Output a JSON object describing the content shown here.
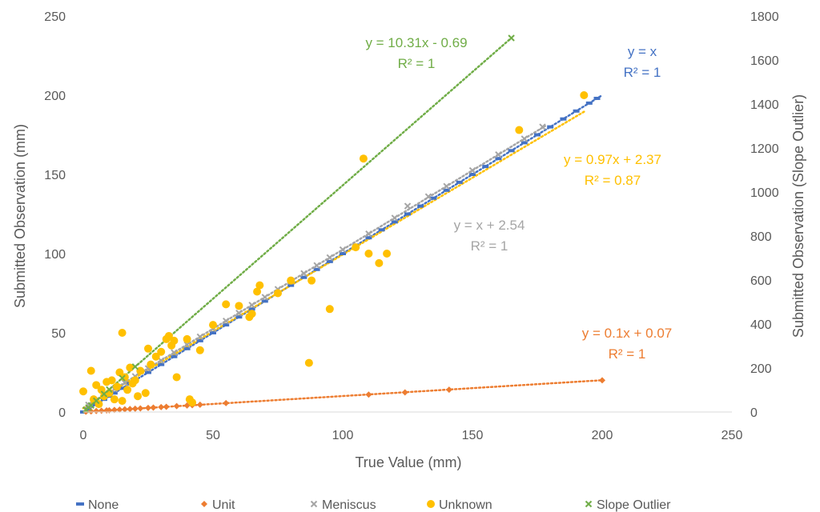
{
  "chart_data": {
    "type": "scatter",
    "xlabel": "True Value (mm)",
    "ylabel": "Submitted Observation (mm)",
    "y2label": "Submitted Observation (Slope Outlier)",
    "xlim": [
      0,
      250
    ],
    "ylim": [
      0,
      250
    ],
    "y2lim": [
      0,
      1800
    ],
    "xticks": [
      0,
      50,
      100,
      150,
      200,
      250
    ],
    "yticks": [
      0,
      50,
      100,
      150,
      200,
      250
    ],
    "y2ticks": [
      0,
      200,
      400,
      600,
      800,
      1000,
      1200,
      1400,
      1600,
      1800
    ],
    "grid": false,
    "legend_position": "bottom",
    "series": [
      {
        "name": "None",
        "marker": "dash",
        "color": "#4472C4",
        "axis": "left",
        "x": [
          0,
          2,
          5,
          8,
          10,
          12,
          15,
          18,
          20,
          25,
          30,
          35,
          40,
          45,
          50,
          55,
          60,
          65,
          70,
          75,
          80,
          85,
          90,
          95,
          100,
          105,
          110,
          115,
          120,
          125,
          130,
          135,
          140,
          145,
          150,
          155,
          160,
          165,
          170,
          175,
          180,
          185,
          190,
          195,
          198
        ],
        "y": [
          0,
          2,
          5,
          8,
          10,
          12,
          15,
          18,
          20,
          25,
          30,
          35,
          40,
          45,
          50,
          55,
          60,
          65,
          70,
          75,
          80,
          85,
          90,
          95,
          100,
          105,
          110,
          115,
          120,
          125,
          130,
          135,
          140,
          145,
          150,
          155,
          160,
          165,
          170,
          175,
          180,
          185,
          190,
          195,
          198
        ],
        "trendline": {
          "label": "y = x",
          "r2": "R² = 1",
          "color": "#4472C4",
          "x_range": [
            0,
            200
          ],
          "slope": 1,
          "intercept": 0
        }
      },
      {
        "name": "Unit",
        "marker": "diamond",
        "color": "#ED7D31",
        "axis": "left",
        "x": [
          1,
          3,
          5,
          7,
          9,
          10,
          12,
          14,
          16,
          18,
          20,
          22,
          25,
          27,
          30,
          32,
          36,
          40,
          42,
          45,
          55,
          110,
          124,
          141,
          200
        ],
        "y": [
          0.2,
          0.4,
          0.6,
          0.8,
          1.0,
          1.1,
          1.3,
          1.5,
          1.7,
          1.9,
          2.1,
          2.3,
          2.6,
          2.8,
          3.1,
          3.3,
          3.7,
          4.1,
          4.3,
          4.6,
          5.6,
          11,
          12.4,
          14.1,
          20
        ],
        "trendline": {
          "label": "y = 0.1x + 0.07",
          "r2": "R² = 1",
          "color": "#ED7D31",
          "x_range": [
            0,
            200
          ],
          "slope": 0.1,
          "intercept": 0.07
        }
      },
      {
        "name": "Meniscus",
        "marker": "x",
        "color": "#A5A5A5",
        "axis": "left",
        "x": [
          2,
          5,
          8,
          12,
          16,
          20,
          25,
          30,
          35,
          40,
          45,
          50,
          55,
          60,
          65,
          70,
          75,
          80,
          85,
          90,
          95,
          100,
          110,
          120,
          125,
          133,
          140,
          150,
          160,
          170,
          177
        ],
        "y": [
          4.5,
          7.5,
          10.5,
          14.5,
          18.5,
          22.5,
          27.5,
          32.5,
          37.5,
          42.5,
          47.5,
          52.5,
          57.5,
          62.5,
          67.5,
          72.5,
          77.5,
          82.5,
          87.5,
          92.5,
          97.5,
          102.5,
          112.5,
          122.5,
          130,
          136,
          142.5,
          152.5,
          162.5,
          172.5,
          180
        ],
        "trendline": {
          "label": "y = x + 2.54",
          "r2": "R² = 1",
          "color": "#A5A5A5",
          "x_range": [
            0,
            178
          ],
          "slope": 1,
          "intercept": 2.54
        }
      },
      {
        "name": "Unknown",
        "marker": "circle",
        "color": "#FFC000",
        "axis": "left",
        "x": [
          0,
          3,
          4,
          5,
          6,
          7,
          8,
          9,
          10,
          11,
          12,
          13,
          14,
          15,
          15,
          16,
          17,
          18,
          19,
          20,
          21,
          22,
          24,
          25,
          26,
          28,
          30,
          32,
          33,
          34,
          35,
          36,
          40,
          41,
          42,
          45,
          50,
          55,
          60,
          64,
          65,
          67,
          68,
          75,
          80,
          87,
          88,
          95,
          105,
          108,
          110,
          114,
          117,
          168,
          193
        ],
        "y": [
          13,
          26,
          8,
          17,
          5,
          14,
          10,
          19,
          12,
          20,
          8,
          16,
          25,
          50,
          7,
          22,
          14,
          28,
          18,
          20,
          10,
          26,
          12,
          40,
          30,
          35,
          38,
          46,
          48,
          42,
          45,
          22,
          46,
          8,
          6,
          39,
          55,
          68,
          67,
          60,
          62,
          76,
          80,
          75,
          83,
          31,
          83,
          65,
          104,
          160,
          100,
          94,
          100,
          178,
          200
        ],
        "trendline": {
          "label": "y = 0.97x + 2.37",
          "r2": "R² = 0.87",
          "color": "#FFC000",
          "x_range": [
            0,
            193
          ],
          "slope": 0.97,
          "intercept": 2.37
        }
      },
      {
        "name": "Slope Outlier",
        "marker": "x",
        "color": "#70AD47",
        "axis": "right",
        "x": [
          1,
          2,
          3,
          5,
          8,
          10,
          15,
          20,
          165
        ],
        "y": [
          10,
          20,
          30,
          51,
          82,
          102,
          154,
          206,
          1700
        ],
        "trendline": {
          "label": "y = 10.31x - 0.69",
          "r2": "R² = 1",
          "color": "#70AD47",
          "x_range": [
            0,
            165
          ],
          "slope": 10.31,
          "intercept": -0.69
        }
      }
    ]
  }
}
